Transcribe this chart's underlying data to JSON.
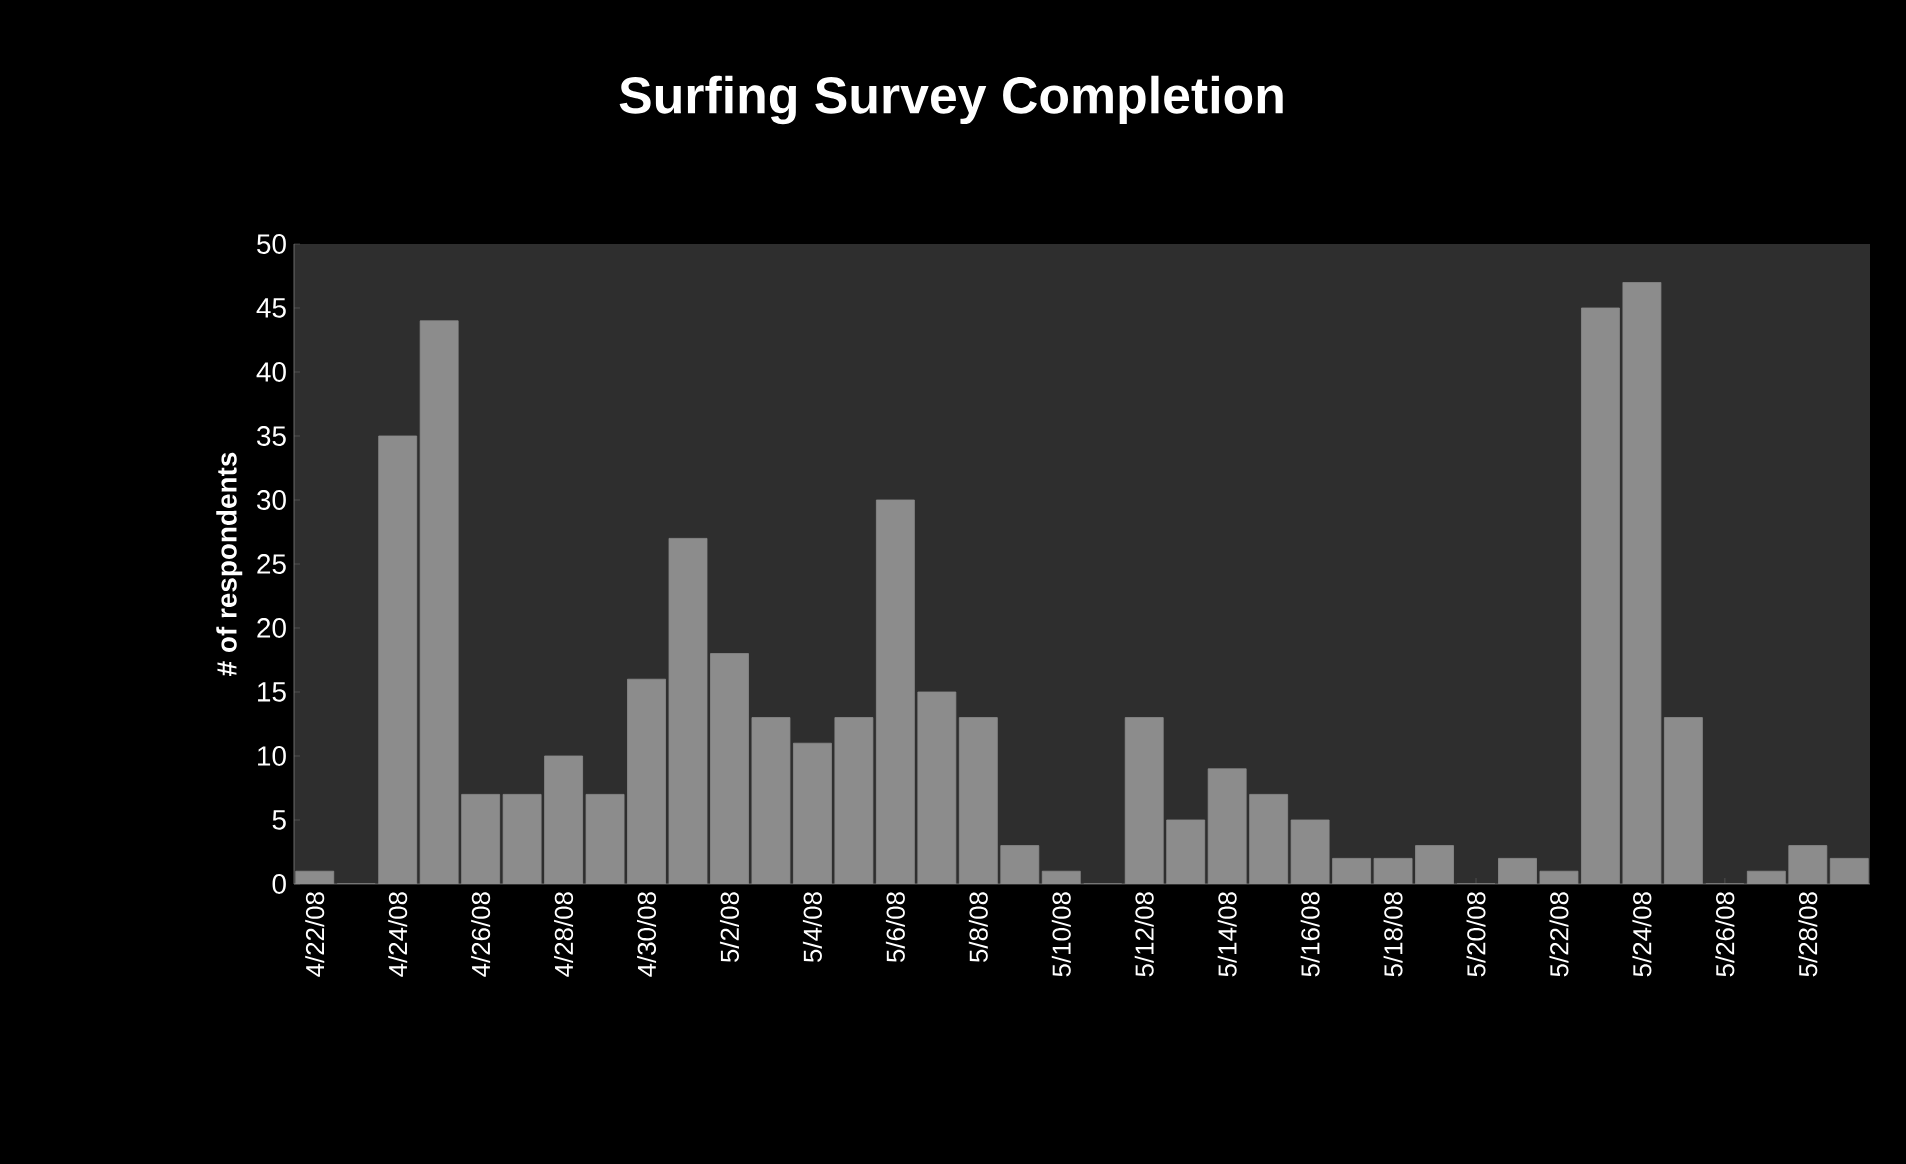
{
  "chart_data": {
    "type": "bar",
    "title": "Surfing Survey Completion",
    "ylabel": "# of respondents",
    "categories": [
      "4/22/08",
      null,
      "4/24/08",
      null,
      "4/26/08",
      null,
      "4/28/08",
      null,
      "4/30/08",
      null,
      "5/2/08",
      null,
      "5/4/08",
      null,
      "5/6/08",
      null,
      "5/8/08",
      null,
      "5/10/08",
      null,
      "5/12/08",
      null,
      "5/14/08",
      null,
      "5/16/08",
      null,
      "5/18/08",
      null,
      "5/20/08",
      null,
      "5/22/08",
      null,
      "5/24/08",
      null,
      "5/26/08",
      null,
      "5/28/08",
      null
    ],
    "values": [
      1,
      0,
      35,
      44,
      7,
      7,
      10,
      7,
      16,
      27,
      18,
      13,
      11,
      13,
      30,
      15,
      13,
      3,
      1,
      0,
      13,
      5,
      9,
      7,
      5,
      2,
      2,
      3,
      0,
      2,
      1,
      45,
      47,
      13,
      0,
      1,
      3,
      2
    ],
    "color": "#8c8c8c",
    "ylim": [
      0,
      50
    ],
    "yticks": [
      0,
      5,
      10,
      15,
      20,
      25,
      30,
      35,
      40,
      45,
      50
    ],
    "grid": false
  }
}
